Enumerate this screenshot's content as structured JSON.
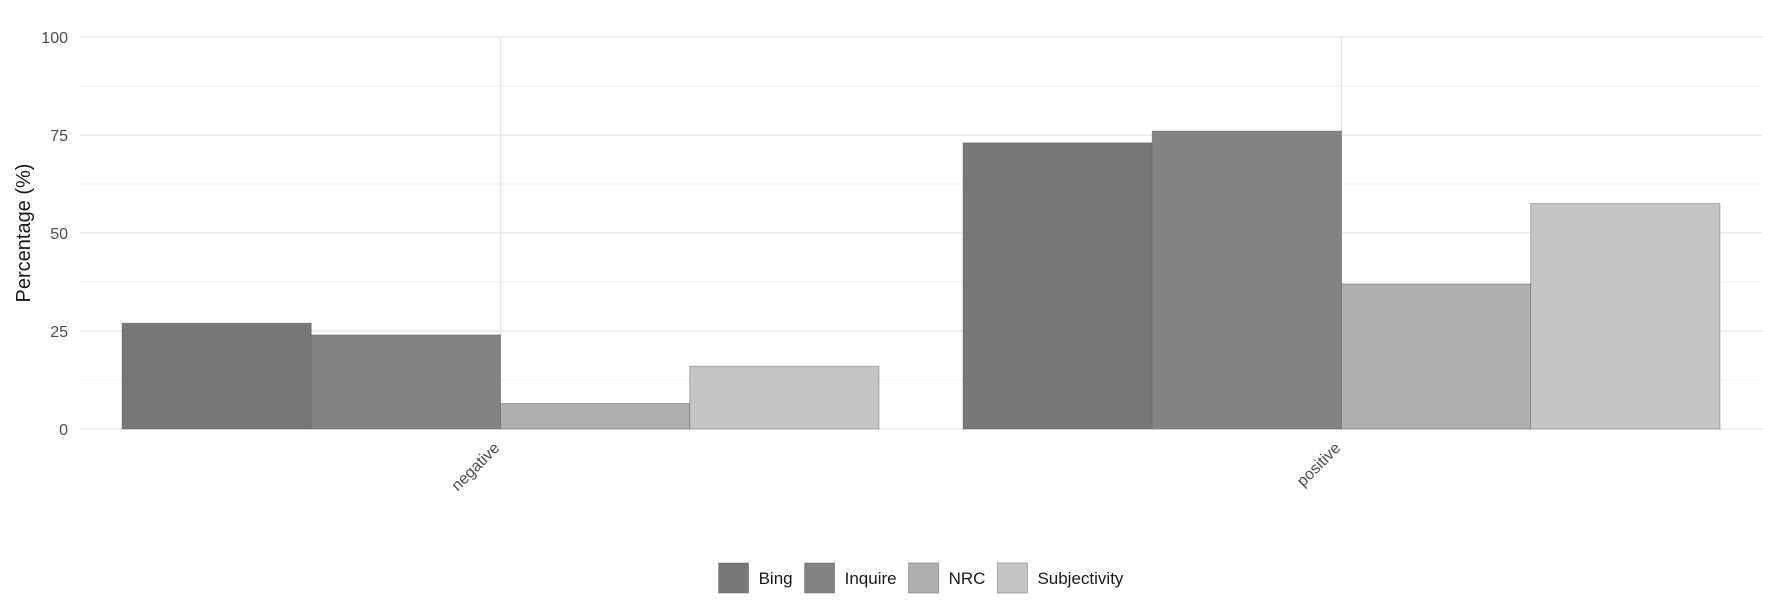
{
  "chart_data": {
    "type": "bar",
    "categories": [
      "negative",
      "positive"
    ],
    "series": [
      {
        "name": "Bing",
        "values": [
          27,
          73
        ],
        "color": "#777777"
      },
      {
        "name": "Inquire",
        "values": [
          24,
          76
        ],
        "color": "#838383"
      },
      {
        "name": "NRC",
        "values": [
          6.5,
          37
        ],
        "color": "#afafaf"
      },
      {
        "name": "Subjectivity",
        "values": [
          16,
          57.5
        ],
        "color": "#c5c5c5"
      }
    ],
    "ylabel": "Percentage (%)",
    "xlabel": "",
    "ylim": [
      0,
      100
    ],
    "yticks": [
      "0",
      "25",
      "50",
      "75",
      "100"
    ],
    "grid": true,
    "legend_position": "bottom"
  }
}
